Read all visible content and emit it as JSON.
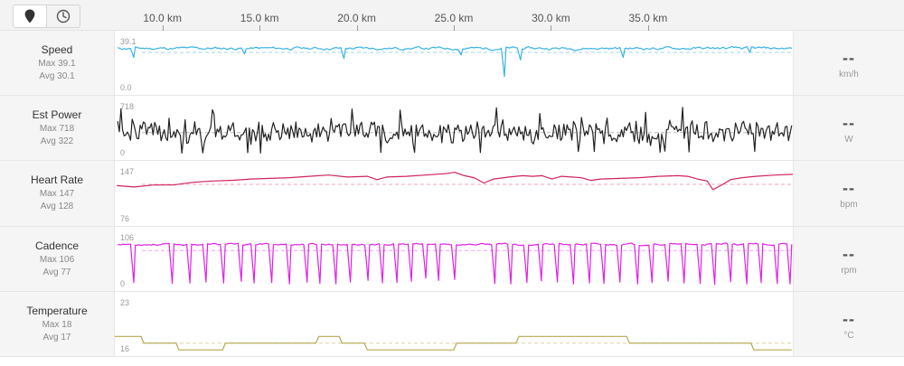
{
  "toolbar": {
    "buttons": [
      {
        "name": "map-pin-icon",
        "active": true
      },
      {
        "name": "clock-icon",
        "active": false
      }
    ]
  },
  "x_axis": {
    "unit": "km",
    "min": 7.5,
    "max": 42.5,
    "ticks": [
      "10.0 km",
      "15.0 km",
      "20.0 km",
      "25.0 km",
      "30.0 km",
      "35.0 km"
    ],
    "tick_values": [
      10,
      15,
      20,
      25,
      30,
      35
    ]
  },
  "rows": [
    {
      "id": "speed",
      "title": "Speed",
      "max_label": "Max 39.1",
      "avg_label": "Avg 30.1",
      "ytop": "39.1",
      "ybot": "0.0",
      "current": "--",
      "unit": "km/h",
      "color": "#3ab2e3",
      "avgColor": "#9fd6ee"
    },
    {
      "id": "power",
      "title": "Est Power",
      "max_label": "Max 718",
      "avg_label": "Avg 322",
      "ytop": "718",
      "ybot": "0",
      "current": "--",
      "unit": "W",
      "color": "#222222",
      "avgColor": "#bbbbbb"
    },
    {
      "id": "hr",
      "title": "Heart Rate",
      "max_label": "Max 147",
      "avg_label": "Avg 128",
      "ytop": "147",
      "ybot": "76",
      "current": "--",
      "unit": "bpm",
      "color": "#d0245a",
      "avgColor": "#f0a4bd"
    },
    {
      "id": "cadence",
      "title": "Cadence",
      "max_label": "Max 106",
      "avg_label": "Avg 77",
      "ytop": "106",
      "ybot": "0",
      "current": "--",
      "unit": "rpm",
      "color": "#e020e6",
      "avgColor": "#f0a0f2"
    },
    {
      "id": "temp",
      "title": "Temperature",
      "max_label": "Max 18",
      "avg_label": "Avg 17",
      "ytop": "23",
      "ybot": "16",
      "current": "--",
      "unit": "°C",
      "color": "#b8a850",
      "avgColor": "#ddd3a0"
    }
  ],
  "chart_data": {
    "type": "line",
    "x_min_km": 7.5,
    "x_max_km": 42.5,
    "series": [
      {
        "id": "speed",
        "ylim": [
          0,
          39.1
        ],
        "avg": 30.1,
        "mean": 33.5,
        "amp": 2.8,
        "seed": 11,
        "dips": [
          [
            8.5,
            26
          ],
          [
            14.2,
            29
          ],
          [
            19.3,
            25
          ],
          [
            25.3,
            28
          ],
          [
            27.6,
            10
          ],
          [
            28.4,
            24
          ],
          [
            33.7,
            26
          ],
          [
            40.2,
            30
          ]
        ]
      },
      {
        "id": "power",
        "ylim": [
          0,
          718
        ],
        "avg": 322,
        "mean": 330,
        "amp": 150,
        "seed": 23,
        "dips": []
      },
      {
        "id": "hr",
        "ylim": [
          76,
          147
        ],
        "avg": 128,
        "seed": 37,
        "points": [
          [
            7.6,
            126
          ],
          [
            8.5,
            124
          ],
          [
            9.5,
            127
          ],
          [
            10.5,
            127
          ],
          [
            11.5,
            131
          ],
          [
            12.5,
            133
          ],
          [
            13.5,
            134
          ],
          [
            14.5,
            136
          ],
          [
            15.5,
            137
          ],
          [
            16.5,
            138
          ],
          [
            17.5,
            140
          ],
          [
            18.5,
            142
          ],
          [
            19.5,
            139
          ],
          [
            20.5,
            140
          ],
          [
            21.0,
            135
          ],
          [
            21.5,
            139
          ],
          [
            22.5,
            140
          ],
          [
            23.5,
            142
          ],
          [
            24.5,
            144
          ],
          [
            25.0,
            146
          ],
          [
            25.5,
            141
          ],
          [
            26.0,
            138
          ],
          [
            26.5,
            130
          ],
          [
            27.0,
            136
          ],
          [
            27.8,
            139
          ],
          [
            28.5,
            141
          ],
          [
            29.0,
            140
          ],
          [
            29.5,
            141
          ],
          [
            30.0,
            136
          ],
          [
            30.5,
            140
          ],
          [
            31.5,
            138
          ],
          [
            32.0,
            134
          ],
          [
            32.5,
            136
          ],
          [
            33.5,
            137
          ],
          [
            34.5,
            138
          ],
          [
            35.5,
            140
          ],
          [
            36.5,
            141
          ],
          [
            37.0,
            140
          ],
          [
            37.5,
            136
          ],
          [
            38.0,
            133
          ],
          [
            38.3,
            120
          ],
          [
            38.8,
            128
          ],
          [
            39.2,
            135
          ],
          [
            39.8,
            138
          ],
          [
            40.5,
            140
          ],
          [
            41.5,
            142
          ],
          [
            42.4,
            143
          ]
        ]
      },
      {
        "id": "cadence",
        "ylim": [
          0,
          106
        ],
        "avg": 77,
        "mean": 91,
        "amp": 5,
        "seed": 53,
        "dips": [
          [
            8.5,
            5
          ],
          [
            10.5,
            3
          ],
          [
            11.4,
            4
          ],
          [
            12.2,
            6
          ],
          [
            13.1,
            4
          ],
          [
            14.0,
            8
          ],
          [
            14.7,
            4
          ],
          [
            15.6,
            5
          ],
          [
            16.5,
            2
          ],
          [
            17.4,
            6
          ],
          [
            18.1,
            3
          ],
          [
            18.9,
            2
          ],
          [
            19.6,
            6
          ],
          [
            20.5,
            10
          ],
          [
            21.3,
            4
          ],
          [
            22.0,
            5
          ],
          [
            22.8,
            8
          ],
          [
            23.5,
            15
          ],
          [
            24.2,
            10
          ],
          [
            25.0,
            12
          ],
          [
            27.1,
            3
          ],
          [
            27.9,
            2
          ],
          [
            28.7,
            5
          ],
          [
            29.5,
            9
          ],
          [
            30.3,
            6
          ],
          [
            31.1,
            2
          ],
          [
            31.9,
            4
          ],
          [
            32.7,
            3
          ],
          [
            33.5,
            6
          ],
          [
            34.4,
            2
          ],
          [
            35.2,
            5
          ],
          [
            36.0,
            8
          ],
          [
            36.8,
            4
          ],
          [
            37.6,
            3
          ],
          [
            38.4,
            1
          ],
          [
            39.2,
            7
          ],
          [
            40.0,
            2
          ],
          [
            40.8,
            5
          ],
          [
            41.6,
            3
          ],
          [
            42.3,
            2
          ]
        ]
      },
      {
        "id": "temp",
        "ylim": [
          16,
          23
        ],
        "avg": 17,
        "seed": 0,
        "steps": [
          [
            7.5,
            18
          ],
          [
            9.0,
            17
          ],
          [
            10.8,
            16
          ],
          [
            13.2,
            17
          ],
          [
            18.0,
            18
          ],
          [
            19.2,
            17
          ],
          [
            20.5,
            16
          ],
          [
            25.1,
            17
          ],
          [
            28.3,
            18
          ],
          [
            34.0,
            17
          ],
          [
            40.4,
            16
          ]
        ]
      }
    ]
  }
}
